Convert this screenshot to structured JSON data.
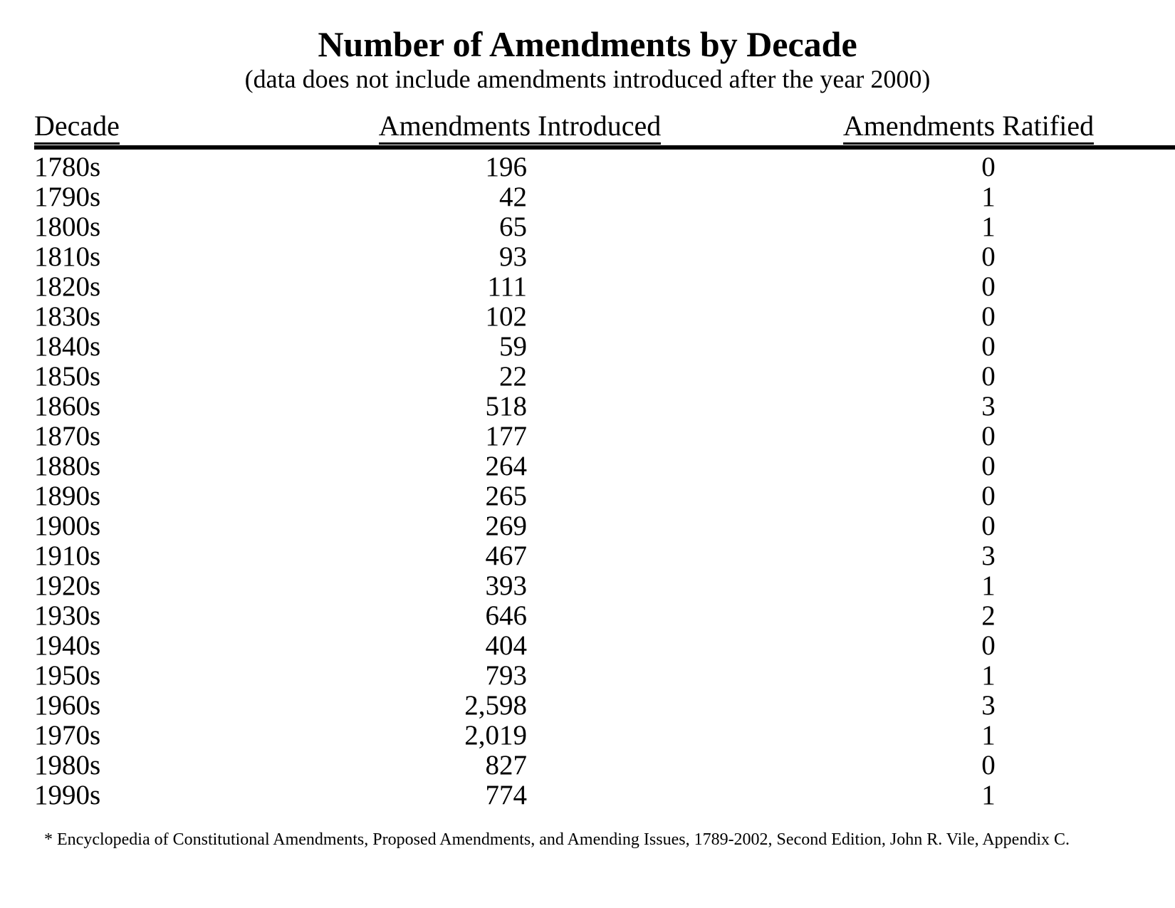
{
  "page": {
    "title": "Number of Amendments by Decade",
    "subtitle": "(data does not include amendments introduced after the year 2000)",
    "footnote": "* Encyclopedia of Constitutional Amendments, Proposed Amendments, and Amending Issues, 1789-2002, Second Edition, John R. Vile, Appendix C."
  },
  "colors": {
    "text": "#000000",
    "background": "#ffffff",
    "rule": "#000000"
  },
  "table": {
    "columns": [
      "Decade",
      "Amendments Introduced",
      "Amendments Ratified"
    ],
    "rows": [
      {
        "decade": "1780s",
        "introduced": "196",
        "ratified": "0"
      },
      {
        "decade": "1790s",
        "introduced": "42",
        "ratified": "1"
      },
      {
        "decade": "1800s",
        "introduced": "65",
        "ratified": "1"
      },
      {
        "decade": "1810s",
        "introduced": "93",
        "ratified": "0"
      },
      {
        "decade": "1820s",
        "introduced": "111",
        "ratified": "0"
      },
      {
        "decade": "1830s",
        "introduced": "102",
        "ratified": "0"
      },
      {
        "decade": "1840s",
        "introduced": "59",
        "ratified": "0"
      },
      {
        "decade": "1850s",
        "introduced": "22",
        "ratified": "0"
      },
      {
        "decade": "1860s",
        "introduced": "518",
        "ratified": "3"
      },
      {
        "decade": "1870s",
        "introduced": "177",
        "ratified": "0"
      },
      {
        "decade": "1880s",
        "introduced": "264",
        "ratified": "0"
      },
      {
        "decade": "1890s",
        "introduced": "265",
        "ratified": "0"
      },
      {
        "decade": "1900s",
        "introduced": "269",
        "ratified": "0"
      },
      {
        "decade": "1910s",
        "introduced": "467",
        "ratified": "3"
      },
      {
        "decade": "1920s",
        "introduced": "393",
        "ratified": "1"
      },
      {
        "decade": "1930s",
        "introduced": "646",
        "ratified": "2"
      },
      {
        "decade": "1940s",
        "introduced": "404",
        "ratified": "0"
      },
      {
        "decade": "1950s",
        "introduced": "793",
        "ratified": "1"
      },
      {
        "decade": "1960s",
        "introduced": "2,598",
        "ratified": "3"
      },
      {
        "decade": "1970s",
        "introduced": "2,019",
        "ratified": "1"
      },
      {
        "decade": "1980s",
        "introduced": "827",
        "ratified": "0"
      },
      {
        "decade": "1990s",
        "introduced": "774",
        "ratified": "1"
      }
    ]
  }
}
